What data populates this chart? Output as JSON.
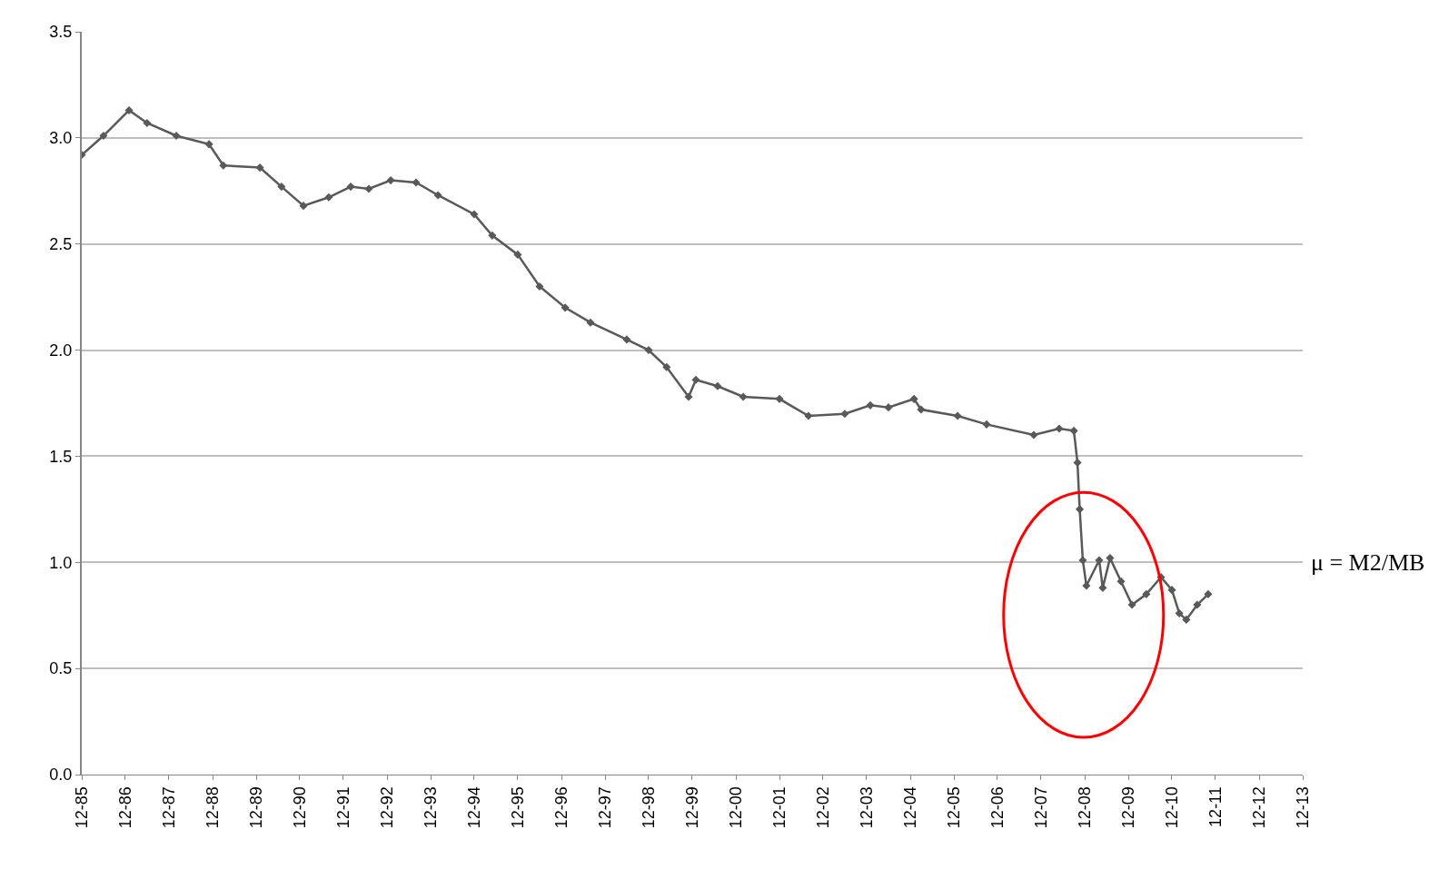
{
  "chart_data": {
    "type": "line",
    "x": [
      "1985-12",
      "1986-06",
      "1987-01",
      "1987-06",
      "1988-02",
      "1988-11",
      "1989-03",
      "1990-01",
      "1990-07",
      "1991-01",
      "1991-08",
      "1992-02",
      "1992-07",
      "1993-01",
      "1993-08",
      "1994-02",
      "1994-12",
      "1995-05",
      "1995-12",
      "1996-06",
      "1997-01",
      "1997-08",
      "1998-06",
      "1998-12",
      "1999-05",
      "1999-11",
      "2000-01",
      "2000-07",
      "2001-02",
      "2001-12",
      "2002-08",
      "2003-06",
      "2004-01",
      "2004-06",
      "2005-01",
      "2005-03",
      "2006-01",
      "2006-09",
      "2007-10",
      "2008-05",
      "2008-09",
      "2008-10-01",
      "2008-10-20",
      "2008-11-15",
      "2008-12-15",
      "2009-04",
      "2009-05",
      "2009-07",
      "2009-10",
      "2010-01",
      "2010-05",
      "2010-09",
      "2010-12",
      "2011-02",
      "2011-04",
      "2011-07",
      "2011-10"
    ],
    "series": [
      {
        "color": "#595959",
        "values": [
          2.92,
          3.01,
          3.13,
          3.07,
          3.01,
          2.97,
          2.87,
          2.86,
          2.77,
          2.68,
          2.72,
          2.77,
          2.76,
          2.8,
          2.79,
          2.73,
          2.64,
          2.54,
          2.45,
          2.3,
          2.2,
          2.13,
          2.05,
          2.0,
          1.92,
          1.78,
          1.86,
          1.83,
          1.78,
          1.77,
          1.69,
          1.7,
          1.74,
          1.73,
          1.77,
          1.72,
          1.69,
          1.65,
          1.6,
          1.63,
          1.62,
          1.47,
          1.25,
          1.01,
          0.89,
          1.01,
          0.88,
          1.02,
          0.91,
          0.8,
          0.85,
          0.93,
          0.87,
          0.76,
          0.73,
          0.8,
          0.85
        ]
      }
    ],
    "xlim": [
      "1985-12",
      "2013-12"
    ],
    "xticks": [
      {
        "value": "1985-12",
        "label": "12-85"
      },
      {
        "value": "1986-12",
        "label": "12-86"
      },
      {
        "value": "1987-12",
        "label": "12-87"
      },
      {
        "value": "1988-12",
        "label": "12-88"
      },
      {
        "value": "1989-12",
        "label": "12-89"
      },
      {
        "value": "1990-12",
        "label": "12-90"
      },
      {
        "value": "1991-12",
        "label": "12-91"
      },
      {
        "value": "1992-12",
        "label": "12-92"
      },
      {
        "value": "1993-12",
        "label": "12-93"
      },
      {
        "value": "1994-12",
        "label": "12-94"
      },
      {
        "value": "1995-12",
        "label": "12-95"
      },
      {
        "value": "1996-12",
        "label": "12-96"
      },
      {
        "value": "1997-12",
        "label": "12-97"
      },
      {
        "value": "1998-12",
        "label": "12-98"
      },
      {
        "value": "1999-12",
        "label": "12-99"
      },
      {
        "value": "2000-12",
        "label": "12-00"
      },
      {
        "value": "2001-12",
        "label": "12-01"
      },
      {
        "value": "2002-12",
        "label": "12-02"
      },
      {
        "value": "2003-12",
        "label": "12-03"
      },
      {
        "value": "2004-12",
        "label": "12-04"
      },
      {
        "value": "2005-12",
        "label": "12-05"
      },
      {
        "value": "2006-12",
        "label": "12-06"
      },
      {
        "value": "2007-12",
        "label": "12-07"
      },
      {
        "value": "2008-12",
        "label": "12-08"
      },
      {
        "value": "2009-12",
        "label": "12-09"
      },
      {
        "value": "2010-12",
        "label": "12-10"
      },
      {
        "value": "2011-12",
        "label": "12-11"
      },
      {
        "value": "2012-12",
        "label": "12-12"
      },
      {
        "value": "2013-12",
        "label": "12-13"
      }
    ],
    "ylim": [
      0,
      3.5
    ],
    "yticks": [
      {
        "value": 0,
        "label": "0.0"
      },
      {
        "value": 0.5,
        "label": "0.5"
      },
      {
        "value": 1,
        "label": "1.0"
      },
      {
        "value": 1.5,
        "label": "1.5"
      },
      {
        "value": 2,
        "label": "2.0"
      },
      {
        "value": 2.5,
        "label": "2.5"
      },
      {
        "value": 3,
        "label": "3.0"
      },
      {
        "value": 3.5,
        "label": "3.5"
      }
    ],
    "grid": "y",
    "marker": "diamond",
    "line_style": "solid",
    "annotations": [
      "μ = M2/MB"
    ]
  }
}
